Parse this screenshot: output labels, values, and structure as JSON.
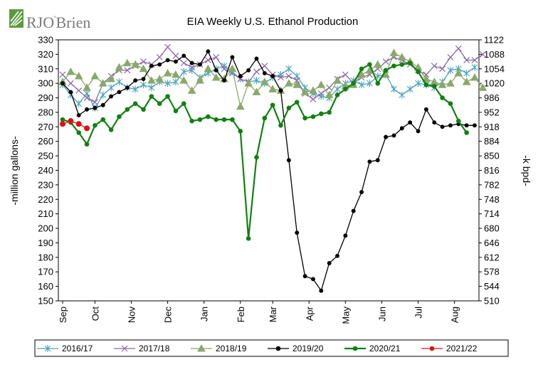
{
  "brand": {
    "name_prefix": "RJO",
    "name_suffix": "Brien",
    "apostrophe": "'",
    "colors": {
      "green": "#5a9a3c",
      "text": "#7a7a7a"
    }
  },
  "chart_data": {
    "type": "line",
    "title": "EIA Weekly U.S. Ethanol Production",
    "ylabel": "-million gallons-",
    "y2label": "-k bpd-",
    "ylim": [
      150,
      330
    ],
    "y_ticks": [
      "150",
      "160",
      "170",
      "180",
      "190",
      "200",
      "210",
      "220",
      "230",
      "240",
      "250",
      "260",
      "270",
      "280",
      "290",
      "300",
      "310",
      "320",
      "330"
    ],
    "y2lim": [
      510,
      1122
    ],
    "y2_ticks": [
      "510",
      "544",
      "578",
      "612",
      "646",
      "680",
      "714",
      "748",
      "782",
      "816",
      "850",
      "884",
      "918",
      "952",
      "986",
      "1020",
      "1054",
      "1088",
      "1122"
    ],
    "x_points": 52,
    "x_ticks": [
      {
        "label": "Sep",
        "week": 0
      },
      {
        "label": "Oct",
        "week": 4
      },
      {
        "label": "Nov",
        "week": 8.5
      },
      {
        "label": "Dec",
        "week": 13
      },
      {
        "label": "Jan",
        "week": 17.5
      },
      {
        "label": "Feb",
        "week": 22
      },
      {
        "label": "Mar",
        "week": 26
      },
      {
        "label": "Apr",
        "week": 30.5
      },
      {
        "label": "May",
        "week": 35
      },
      {
        "label": "Jun",
        "week": 39.5
      },
      {
        "label": "Jul",
        "week": 44
      },
      {
        "label": "Aug",
        "week": 48.5
      }
    ],
    "legend_position": "bottom",
    "series": [
      {
        "name": "2016/17",
        "color": "#4aa3b8",
        "marker": "star",
        "lw": 1.3,
        "values": [
          299,
          292,
          286,
          293,
          283,
          292,
          297,
          301,
          297,
          296,
          299,
          297,
          301,
          300,
          301,
          308,
          309,
          304,
          307,
          310,
          312,
          308,
          303,
          301,
          302,
          300,
          304,
          306,
          310,
          305,
          297,
          293,
          291,
          290,
          296,
          300,
          302,
          299,
          300,
          305,
          306,
          296,
          292,
          296,
          300,
          299,
          297,
          301,
          309,
          310,
          307,
          311
        ]
      },
      {
        "name": "2017/18",
        "color": "#8a6aa8",
        "marker": "x",
        "lw": 1.3,
        "values": [
          306,
          300,
          295,
          290,
          287,
          300,
          305,
          309,
          309,
          312,
          315,
          313,
          318,
          325,
          319,
          314,
          311,
          313,
          316,
          318,
          310,
          307,
          303,
          301,
          308,
          312,
          306,
          304,
          305,
          302,
          293,
          289,
          293,
          297,
          303,
          306,
          300,
          304,
          306,
          310,
          315,
          318,
          316,
          313,
          309,
          306,
          312,
          310,
          318,
          324,
          316,
          316,
          320
        ]
      },
      {
        "name": "2018/19",
        "color": "#8aa86a",
        "marker": "triangle",
        "lw": 1.3,
        "values": [
          301,
          308,
          305,
          297,
          305,
          300,
          303,
          311,
          314,
          313,
          310,
          302,
          303,
          307,
          306,
          302,
          295,
          302,
          310,
          304,
          303,
          310,
          284,
          300,
          294,
          301,
          296,
          295,
          300,
          299,
          294,
          295,
          299,
          292,
          302,
          298,
          299,
          306,
          309,
          313,
          306,
          321,
          318,
          315,
          311,
          303,
          301,
          299,
          300,
          307,
          301,
          304,
          297
        ]
      },
      {
        "name": "2019/20",
        "color": "#000000",
        "marker": "circle",
        "lw": 1.3,
        "values": [
          300,
          294,
          278,
          282,
          283,
          285,
          291,
          294,
          297,
          302,
          303,
          312,
          313,
          316,
          315,
          319,
          314,
          313,
          322,
          309,
          302,
          318,
          305,
          309,
          317,
          307,
          305,
          295,
          247,
          197,
          167,
          165,
          157,
          176,
          181,
          195,
          212,
          225,
          246,
          247,
          263,
          264,
          269,
          273,
          267,
          282,
          273,
          270,
          271,
          272,
          271,
          271
        ]
      },
      {
        "name": "2020/21",
        "color": "#118011",
        "marker": "circle",
        "lw": 2.2,
        "values": [
          275,
          273,
          266,
          258,
          271,
          275,
          268,
          277,
          282,
          286,
          282,
          291,
          286,
          291,
          281,
          286,
          274,
          275,
          277,
          275,
          275,
          275,
          267,
          193,
          249,
          276,
          285,
          271,
          283,
          287,
          276,
          277,
          279,
          280,
          292,
          296,
          300,
          310,
          313,
          300,
          309,
          312,
          313,
          314,
          308,
          299,
          298,
          290,
          286,
          274,
          266
        ]
      },
      {
        "name": "2021/22",
        "color": "#e01010",
        "marker": "circle",
        "lw": 1.3,
        "values": [
          272,
          274,
          272,
          269
        ]
      }
    ]
  }
}
